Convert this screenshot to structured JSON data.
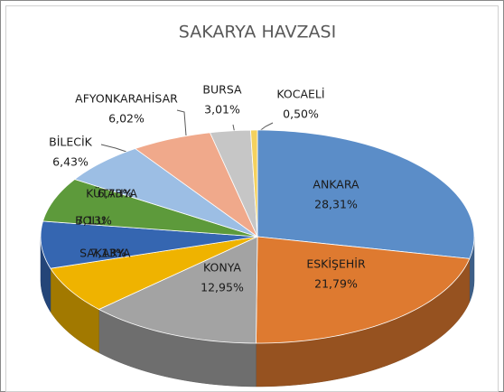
{
  "chart_data": {
    "type": "pie3d",
    "title": "SAKARYA HAVZASI",
    "categories": [
      "ANKARA",
      "ESKİŞEHİR",
      "KONYA",
      "SAKARYA",
      "BOLU",
      "KÜTAHYA",
      "BİLECİK",
      "AFYONKARAHİSAR",
      "BURSA",
      "KOCAELİ"
    ],
    "values": [
      28.31,
      21.79,
      12.95,
      7.13,
      7.13,
      6.73,
      6.43,
      6.02,
      3.01,
      0.5
    ],
    "value_labels": [
      "28,31%",
      "21,79%",
      "12,95%",
      "7,13%",
      "7,13%",
      "6,73%",
      "6,43%",
      "6,02%",
      "3,01%",
      "0,50%"
    ],
    "colors": [
      "#5b8dc8",
      "#de7a30",
      "#a3a3a3",
      "#efb300",
      "#3566b1",
      "#5d9a3b",
      "#9cbee4",
      "#f0a98b",
      "#c6c6c6",
      "#f4d15e"
    ]
  }
}
